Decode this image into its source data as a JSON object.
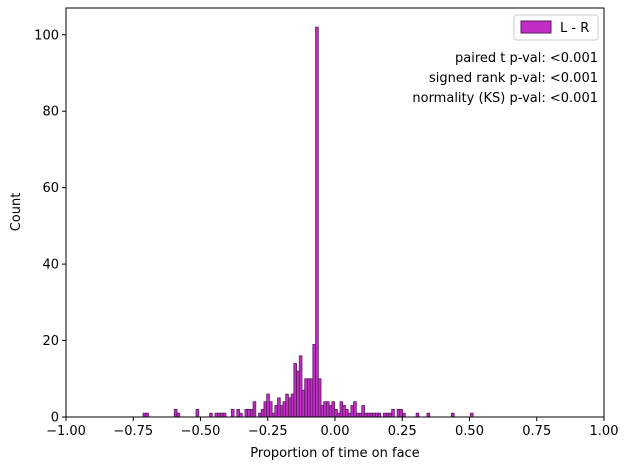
{
  "chart_data": {
    "type": "bar",
    "subtype": "histogram",
    "xlabel": "Proportion of time on face",
    "ylabel": "Count",
    "xlim": [
      -1.0,
      1.0
    ],
    "ylim": [
      0,
      107
    ],
    "xticks": [
      -1.0,
      -0.75,
      -0.5,
      -0.25,
      0.0,
      0.25,
      0.5,
      0.75,
      1.0
    ],
    "xtick_labels": [
      "−1.00",
      "−0.75",
      "−0.50",
      "−0.25",
      "0.00",
      "0.25",
      "0.50",
      "0.75",
      "1.00"
    ],
    "yticks": [
      0,
      20,
      40,
      60,
      80,
      100
    ],
    "ytick_labels": [
      "0",
      "20",
      "40",
      "60",
      "80",
      "100"
    ],
    "grid": false,
    "legend_position": "top-right",
    "bin_width": 0.0101,
    "series": [
      {
        "name": "L - R",
        "color": "#c12ec6",
        "edge_color": "#5b1a5e",
        "bins": [
          [
            -0.7136,
            1
          ],
          [
            -0.7035,
            1
          ],
          [
            -0.5974,
            2
          ],
          [
            -0.5873,
            1
          ],
          [
            -0.5166,
            2
          ],
          [
            -0.4661,
            1
          ],
          [
            -0.4459,
            1
          ],
          [
            -0.4358,
            1
          ],
          [
            -0.4257,
            1
          ],
          [
            -0.4156,
            1
          ],
          [
            -0.3853,
            2
          ],
          [
            -0.3651,
            2
          ],
          [
            -0.355,
            1
          ],
          [
            -0.3348,
            2
          ],
          [
            -0.3247,
            2
          ],
          [
            -0.3146,
            2
          ],
          [
            -0.3045,
            4
          ],
          [
            -0.2843,
            1
          ],
          [
            -0.2742,
            2
          ],
          [
            -0.2641,
            4
          ],
          [
            -0.254,
            6
          ],
          [
            -0.2439,
            4
          ],
          [
            -0.2338,
            1
          ],
          [
            -0.2237,
            3
          ],
          [
            -0.2136,
            5
          ],
          [
            -0.2035,
            3
          ],
          [
            -0.1934,
            4
          ],
          [
            -0.1833,
            6
          ],
          [
            -0.1732,
            5
          ],
          [
            -0.1631,
            6
          ],
          [
            -0.153,
            14
          ],
          [
            -0.1429,
            12
          ],
          [
            -0.1328,
            16
          ],
          [
            -0.1227,
            7
          ],
          [
            -0.1126,
            10
          ],
          [
            -0.1025,
            10
          ],
          [
            -0.0924,
            10
          ],
          [
            -0.0823,
            19
          ],
          [
            -0.0722,
            102
          ],
          [
            -0.0621,
            10
          ],
          [
            -0.052,
            3
          ],
          [
            -0.0419,
            4
          ],
          [
            -0.0318,
            4
          ],
          [
            -0.0217,
            3
          ],
          [
            -0.0116,
            4
          ],
          [
            -0.0015,
            2
          ],
          [
            0.0086,
            1
          ],
          [
            0.0187,
            4
          ],
          [
            0.0288,
            3
          ],
          [
            0.0389,
            2
          ],
          [
            0.049,
            1
          ],
          [
            0.0591,
            3
          ],
          [
            0.0692,
            4
          ],
          [
            0.0793,
            1
          ],
          [
            0.0894,
            1
          ],
          [
            0.0995,
            3
          ],
          [
            0.1096,
            1
          ],
          [
            0.1197,
            1
          ],
          [
            0.1298,
            1
          ],
          [
            0.1399,
            1
          ],
          [
            0.15,
            1
          ],
          [
            0.1601,
            1
          ],
          [
            0.1803,
            1
          ],
          [
            0.1904,
            1
          ],
          [
            0.2005,
            1
          ],
          [
            0.2106,
            2
          ],
          [
            0.2308,
            2
          ],
          [
            0.2409,
            2
          ],
          [
            0.251,
            1
          ],
          [
            0.3015,
            1
          ],
          [
            0.3419,
            1
          ],
          [
            0.4328,
            1
          ],
          [
            0.5035,
            1
          ]
        ]
      }
    ],
    "annotations": [
      "paired t p-val: <0.001",
      "signed rank p-val: <0.001",
      "normality (KS) p-val: <0.001"
    ]
  }
}
